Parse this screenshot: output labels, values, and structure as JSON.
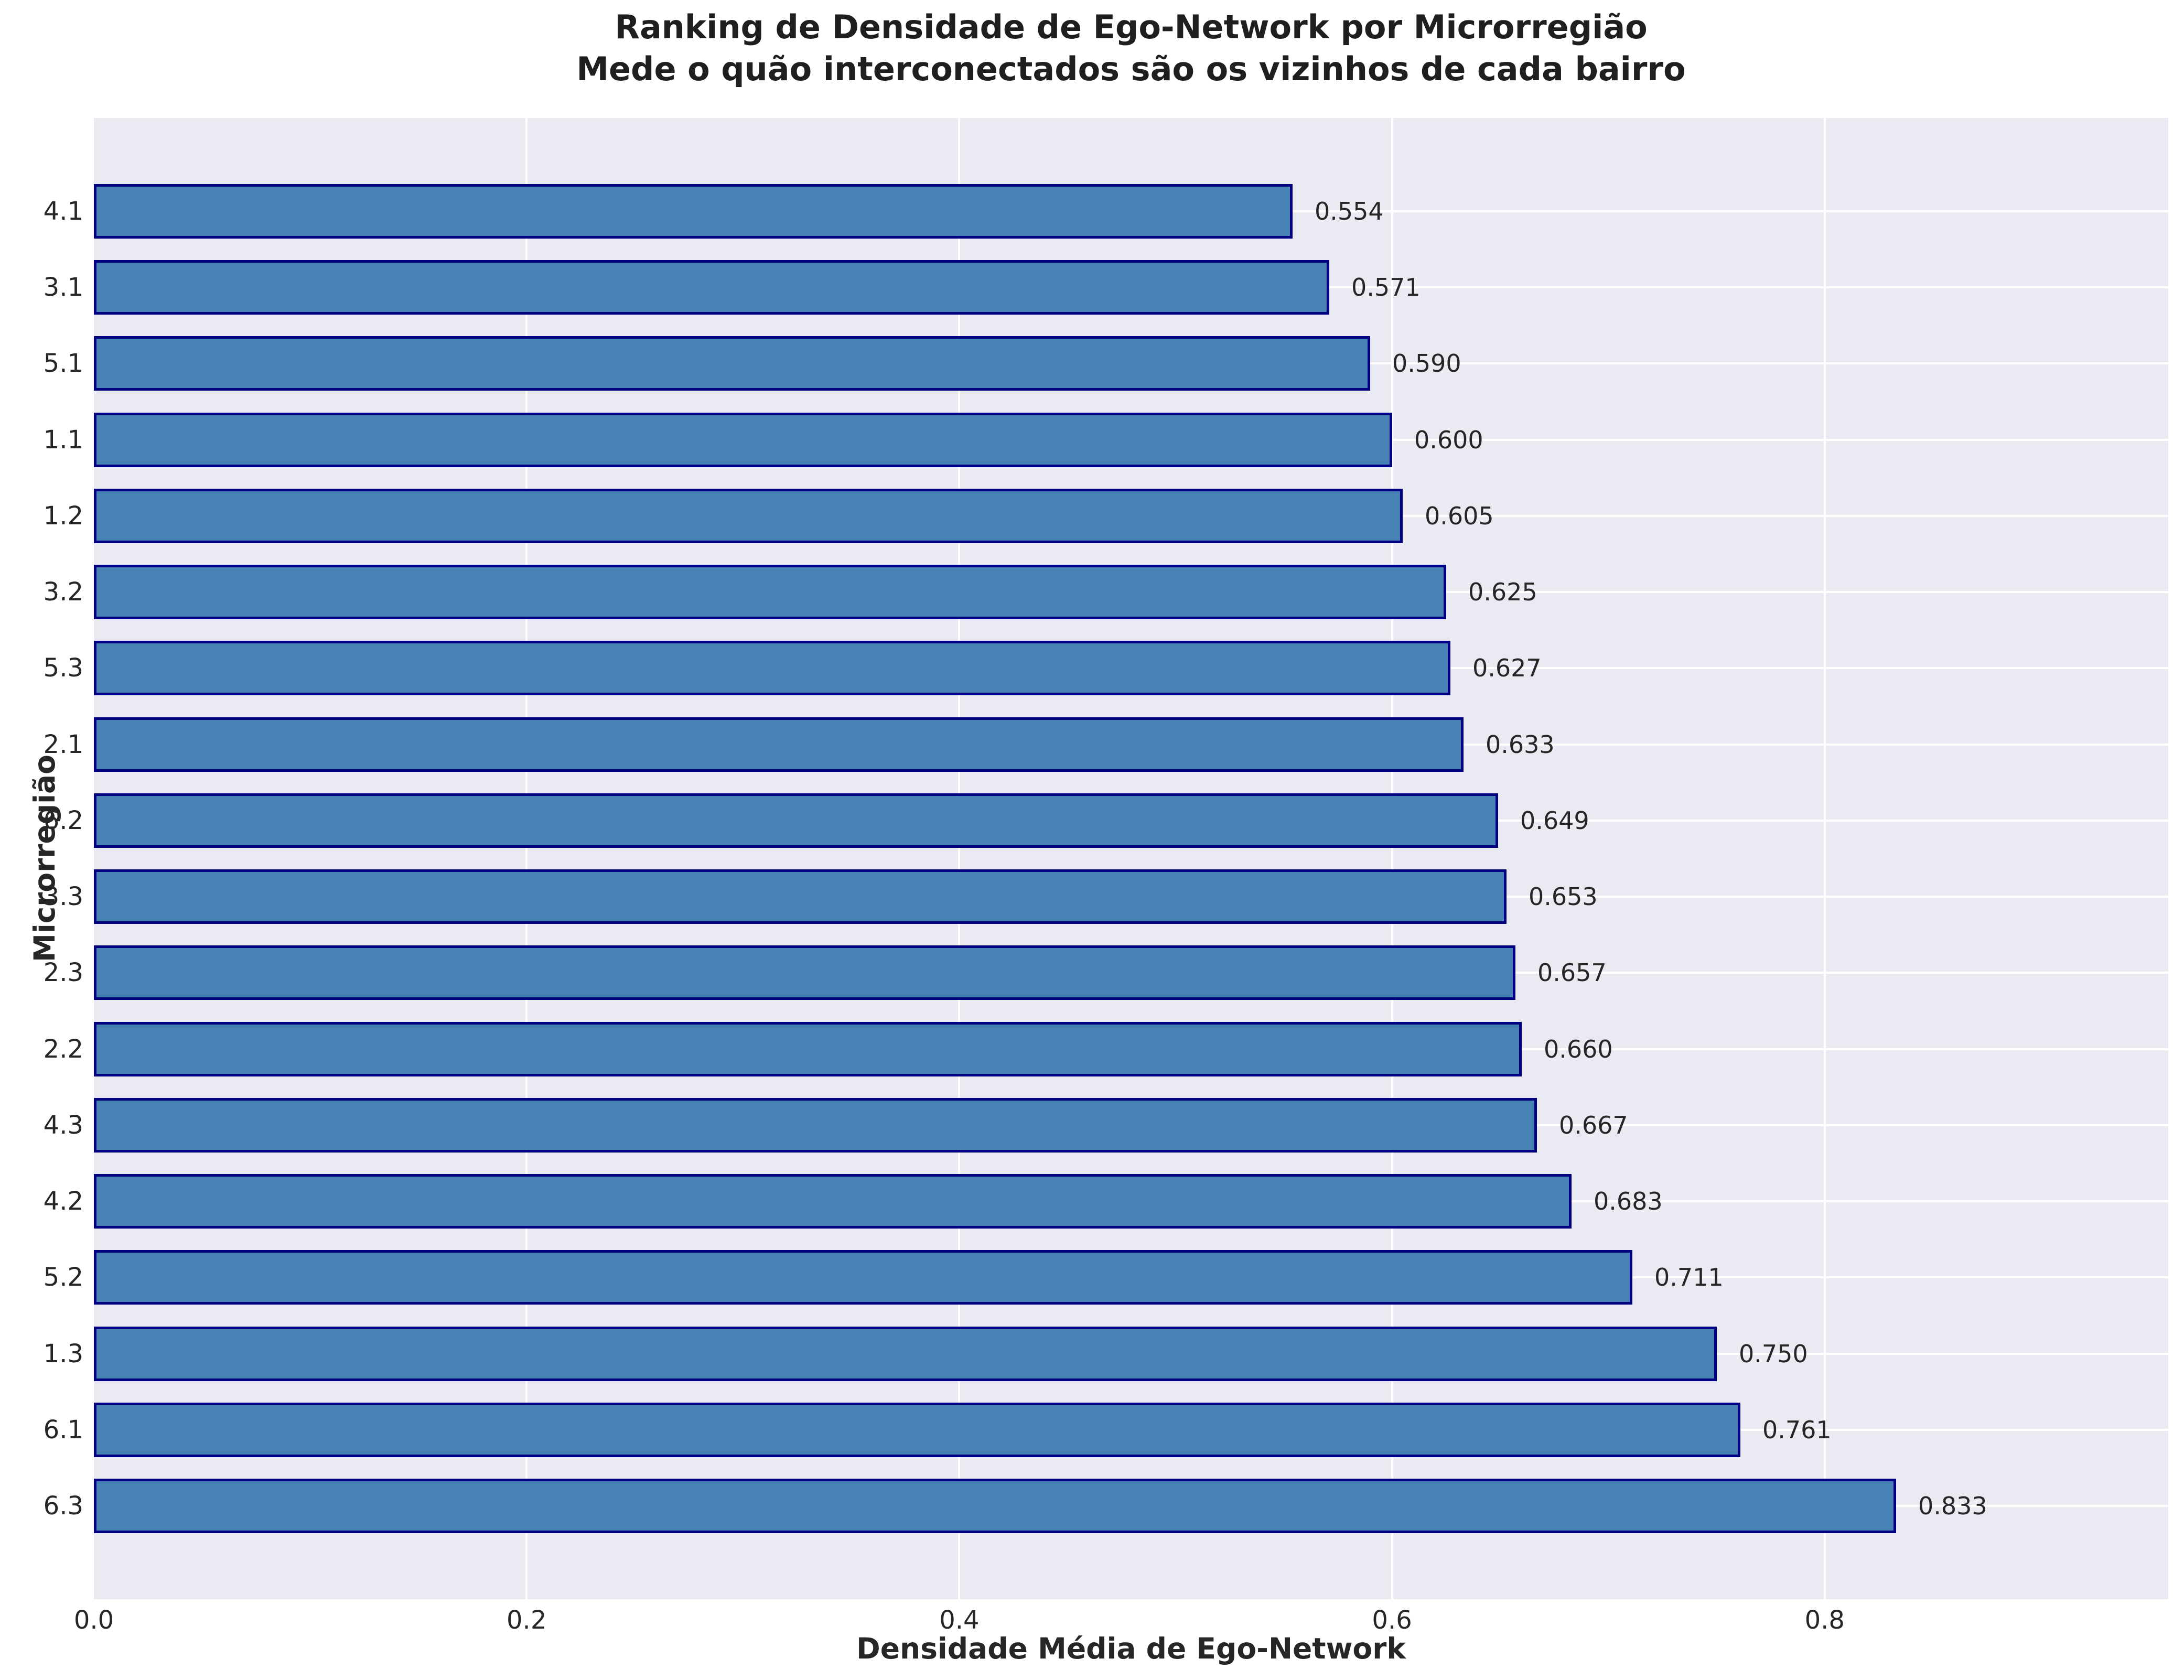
{
  "chart_data": {
    "type": "bar",
    "orientation": "horizontal",
    "title": "Ranking de Densidade de Ego-Network por Microrregião",
    "subtitle": "Mede o quão interconectados são os vizinhos de cada bairro",
    "xlabel": "Densidade Média de Ego-Network",
    "ylabel": "Microrregião",
    "categories": [
      "4.1",
      "3.1",
      "5.1",
      "1.1",
      "1.2",
      "3.2",
      "5.3",
      "2.1",
      "6.2",
      "3.3",
      "2.3",
      "2.2",
      "4.3",
      "4.2",
      "5.2",
      "1.3",
      "6.1",
      "6.3"
    ],
    "values": [
      0.554,
      0.571,
      0.59,
      0.6,
      0.605,
      0.625,
      0.627,
      0.633,
      0.649,
      0.653,
      0.657,
      0.66,
      0.667,
      0.683,
      0.711,
      0.75,
      0.761,
      0.833
    ],
    "value_labels": [
      "0.554",
      "0.571",
      "0.590",
      "0.600",
      "0.605",
      "0.625",
      "0.627",
      "0.633",
      "0.649",
      "0.653",
      "0.657",
      "0.660",
      "0.667",
      "0.683",
      "0.711",
      "0.750",
      "0.761",
      "0.833"
    ],
    "x_ticks": [
      0.0,
      0.2,
      0.4,
      0.6,
      0.8
    ],
    "x_tick_labels": [
      "0.0",
      "0.2",
      "0.4",
      "0.6",
      "0.8"
    ],
    "xlim": [
      0.0,
      0.959
    ],
    "grid": true,
    "legend": false,
    "colors": {
      "bar_fill": "#4682b4",
      "bar_edge": "#000080",
      "plot_background": "#eaeaf2",
      "gridline": "#ffffff",
      "text": "#262626",
      "title_text": "#1f1f1f",
      "figure_background": "#ffffff"
    }
  }
}
